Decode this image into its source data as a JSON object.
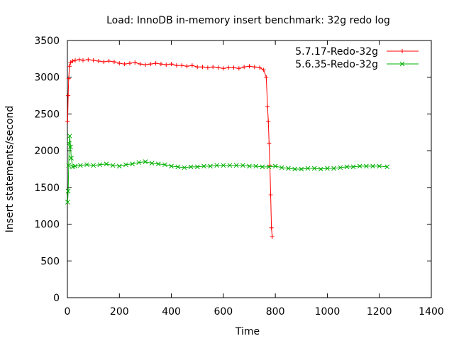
{
  "chart_data": {
    "type": "line",
    "title": "Load: InnoDB in-memory insert benchmark: 32g redo log",
    "xlabel": "Time",
    "ylabel": "Insert statements/second",
    "xlim": [
      0,
      1400
    ],
    "ylim": [
      0,
      3500
    ],
    "xticks": [
      "0",
      "200",
      "400",
      "600",
      "800",
      "1000",
      "1200",
      "1400"
    ],
    "yticks": [
      "0",
      "500",
      "1000",
      "1500",
      "2000",
      "2500",
      "3000",
      "3500"
    ],
    "grid": false,
    "legend_position": "top-right",
    "series": [
      {
        "name": "5.7.17-Redo-32g",
        "color": "#ff0000",
        "marker": "plus",
        "x": [
          1,
          3,
          5,
          8,
          12,
          20,
          30,
          45,
          60,
          80,
          100,
          120,
          140,
          160,
          180,
          200,
          220,
          240,
          260,
          280,
          300,
          320,
          340,
          360,
          380,
          400,
          420,
          440,
          460,
          480,
          500,
          520,
          540,
          560,
          580,
          600,
          620,
          640,
          660,
          680,
          700,
          720,
          740,
          755,
          765,
          770,
          773,
          776,
          779,
          782,
          785,
          788
        ],
        "y": [
          2400,
          2750,
          2980,
          3150,
          3200,
          3220,
          3230,
          3240,
          3230,
          3240,
          3230,
          3220,
          3210,
          3220,
          3210,
          3190,
          3180,
          3190,
          3200,
          3180,
          3170,
          3180,
          3190,
          3180,
          3170,
          3180,
          3160,
          3160,
          3150,
          3160,
          3140,
          3140,
          3130,
          3140,
          3130,
          3120,
          3130,
          3130,
          3120,
          3140,
          3150,
          3140,
          3130,
          3100,
          3000,
          2600,
          2400,
          2100,
          1800,
          1400,
          950,
          830
        ]
      },
      {
        "name": "5.6.35-Redo-32g",
        "color": "#00b000",
        "marker": "cross",
        "x": [
          1,
          3,
          5,
          7,
          9,
          12,
          15,
          20,
          30,
          50,
          75,
          100,
          125,
          150,
          175,
          200,
          225,
          250,
          275,
          300,
          325,
          350,
          375,
          400,
          425,
          450,
          475,
          500,
          525,
          550,
          575,
          600,
          625,
          650,
          675,
          700,
          725,
          750,
          775,
          800,
          825,
          850,
          875,
          900,
          925,
          950,
          975,
          1000,
          1025,
          1050,
          1075,
          1100,
          1125,
          1150,
          1175,
          1200,
          1230
        ],
        "y": [
          1300,
          1450,
          1800,
          2100,
          2200,
          2050,
          1900,
          1780,
          1790,
          1800,
          1810,
          1800,
          1810,
          1820,
          1800,
          1790,
          1810,
          1820,
          1840,
          1850,
          1830,
          1820,
          1810,
          1790,
          1780,
          1770,
          1780,
          1780,
          1790,
          1790,
          1800,
          1800,
          1800,
          1800,
          1800,
          1790,
          1790,
          1780,
          1780,
          1790,
          1770,
          1760,
          1750,
          1750,
          1760,
          1760,
          1750,
          1760,
          1760,
          1770,
          1780,
          1780,
          1790,
          1790,
          1790,
          1790,
          1780
        ]
      }
    ]
  }
}
